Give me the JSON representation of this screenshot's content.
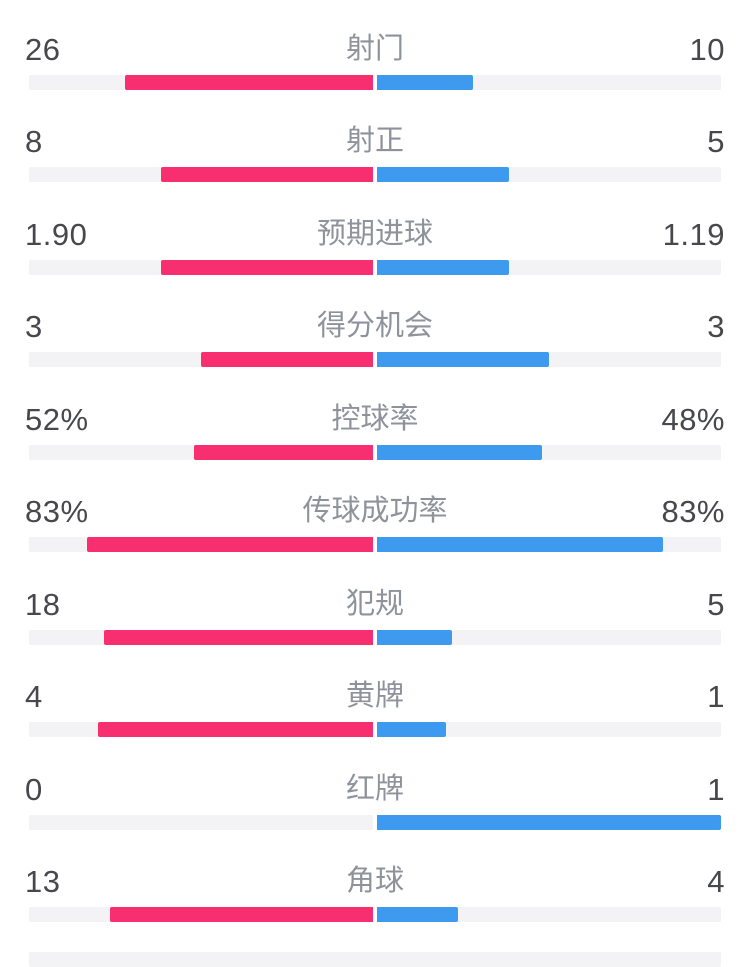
{
  "colors": {
    "background": "#FFFFFF",
    "home": "#F72E6F",
    "away": "#3D9AEF",
    "track": "#F3F3F5",
    "value_text": "#47484C",
    "label_text": "#8E939B"
  },
  "chart_data": {
    "type": "bar",
    "subtype": "paired-horizontal-comparison",
    "title": "",
    "legend_position": "none",
    "grid": false,
    "home_color": "#F72E6F",
    "away_color": "#3D9AEF",
    "bar_anchor": "center",
    "stats": [
      {
        "label": "射门",
        "home": "26",
        "away": "10",
        "home_frac": 0.722,
        "away_frac": 0.278
      },
      {
        "label": "射正",
        "home": "8",
        "away": "5",
        "home_frac": 0.615,
        "away_frac": 0.385
      },
      {
        "label": "预期进球",
        "home": "1.90",
        "away": "1.19",
        "home_frac": 0.615,
        "away_frac": 0.385
      },
      {
        "label": "得分机会",
        "home": "3",
        "away": "3",
        "home_frac": 0.5,
        "away_frac": 0.5
      },
      {
        "label": "控球率",
        "home": "52%",
        "away": "48%",
        "home_frac": 0.52,
        "away_frac": 0.48
      },
      {
        "label": "传球成功率",
        "home": "83%",
        "away": "83%",
        "home_frac": 0.83,
        "away_frac": 0.83
      },
      {
        "label": "犯规",
        "home": "18",
        "away": "5",
        "home_frac": 0.783,
        "away_frac": 0.217
      },
      {
        "label": "黄牌",
        "home": "4",
        "away": "1",
        "home_frac": 0.8,
        "away_frac": 0.2
      },
      {
        "label": "红牌",
        "home": "0",
        "away": "1",
        "home_frac": 0,
        "away_frac": 1
      },
      {
        "label": "角球",
        "home": "13",
        "away": "4",
        "home_frac": 0.765,
        "away_frac": 0.235
      }
    ]
  }
}
